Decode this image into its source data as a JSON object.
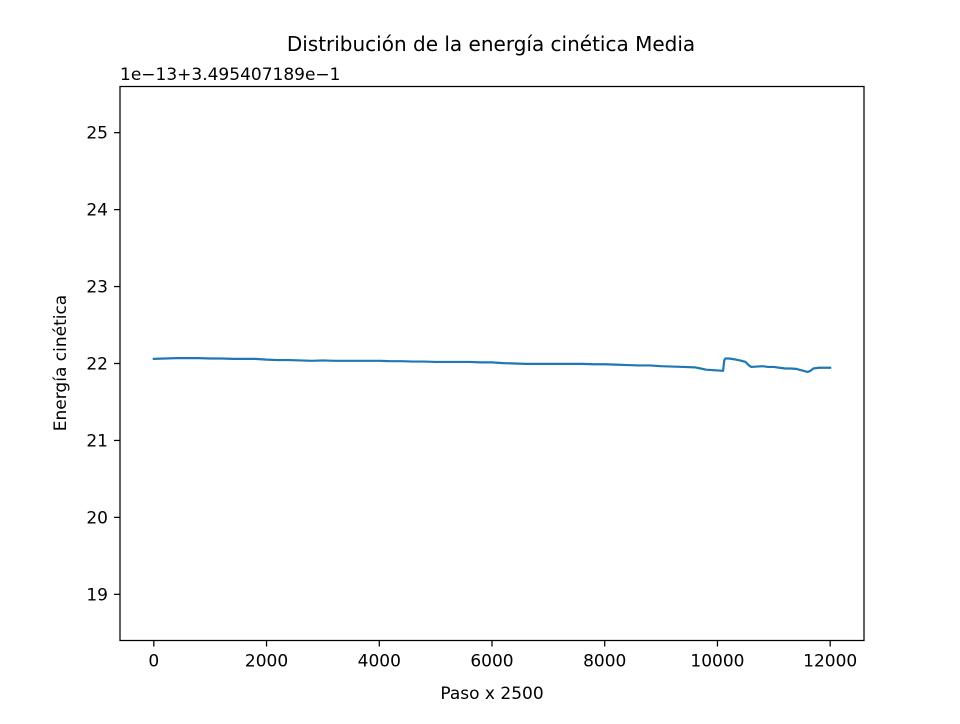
{
  "chart_data": {
    "type": "line",
    "title": "Distribución de la energía cinética Media",
    "xlabel": "Paso x 2500",
    "ylabel": "Energía cinética",
    "offset_text": "1e−13+3.495407189e−1",
    "xlim": [
      -600,
      12600
    ],
    "ylim": [
      18.4,
      25.6
    ],
    "xticks": [
      0,
      2000,
      4000,
      6000,
      8000,
      10000,
      12000
    ],
    "xtick_labels": [
      "0",
      "2000",
      "4000",
      "6000",
      "8000",
      "10000",
      "12000"
    ],
    "yticks": [
      19,
      20,
      21,
      22,
      23,
      24,
      25
    ],
    "ytick_labels": [
      "19",
      "20",
      "21",
      "22",
      "23",
      "24",
      "25"
    ],
    "grid": false,
    "series": [
      {
        "name": "Energía cinética",
        "color": "#1f77b4",
        "x": [
          0,
          200,
          400,
          600,
          800,
          1000,
          1200,
          1400,
          1600,
          1800,
          2000,
          2200,
          2400,
          2600,
          2800,
          3000,
          3200,
          3400,
          3600,
          3800,
          4000,
          4200,
          4400,
          4600,
          4800,
          5000,
          5200,
          5400,
          5600,
          5800,
          6000,
          6200,
          6400,
          6600,
          6800,
          7000,
          7200,
          7400,
          7600,
          7800,
          8000,
          8200,
          8400,
          8600,
          8800,
          9000,
          9200,
          9400,
          9600,
          9700,
          9800,
          9900,
          10000,
          10100,
          10120,
          10140,
          10200,
          10300,
          10400,
          10500,
          10550,
          10600,
          10700,
          10800,
          10900,
          11000,
          11100,
          11200,
          11300,
          11400,
          11500,
          11600,
          11650,
          11700,
          11800,
          11900,
          12000
        ],
        "values": [
          22.06,
          22.065,
          22.07,
          22.07,
          22.07,
          22.065,
          22.065,
          22.06,
          22.06,
          22.06,
          22.05,
          22.045,
          22.045,
          22.04,
          22.035,
          22.04,
          22.035,
          22.035,
          22.035,
          22.035,
          22.035,
          22.03,
          22.03,
          22.025,
          22.025,
          22.02,
          22.02,
          22.02,
          22.02,
          22.015,
          22.015,
          22.005,
          22.0,
          21.995,
          21.995,
          21.995,
          21.995,
          21.995,
          21.995,
          21.99,
          21.99,
          21.985,
          21.98,
          21.975,
          21.975,
          21.965,
          21.96,
          21.955,
          21.95,
          21.935,
          21.92,
          21.915,
          21.91,
          21.905,
          22.04,
          22.065,
          22.065,
          22.055,
          22.04,
          22.02,
          21.98,
          21.955,
          21.96,
          21.965,
          21.955,
          21.955,
          21.945,
          21.935,
          21.935,
          21.93,
          21.91,
          21.89,
          21.905,
          21.935,
          21.945,
          21.945,
          21.945
        ]
      }
    ]
  }
}
